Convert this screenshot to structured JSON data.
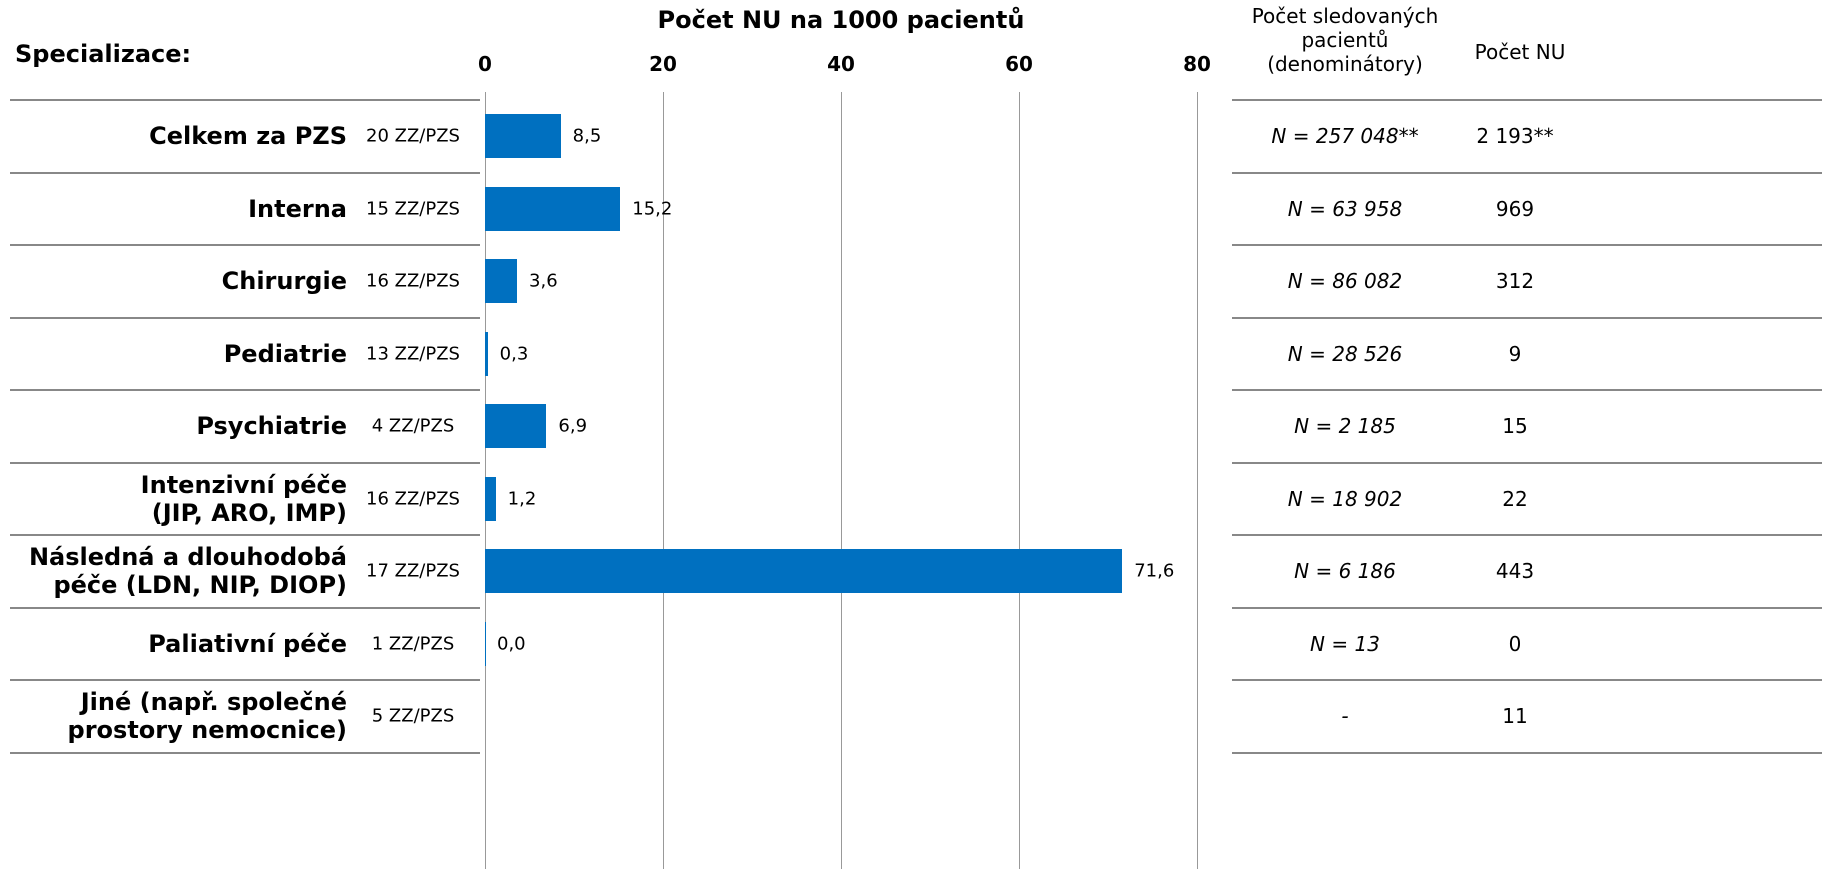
{
  "chart_data": {
    "type": "bar",
    "orientation": "horizontal",
    "title": "Počet NU na 1000 pacientů",
    "category_header": "Specializace:",
    "categories": [
      "Celkem za PZS",
      "Interna",
      "Chirurgie",
      "Pediatrie",
      "Psychiatrie",
      "Intenzivní péče\n(JIP, ARO, IMP)",
      "Následná a dlouhodobá\npéče (LDN, NIP, DIOP)",
      "Paliativní péče",
      "Jiné (např. společné\nprostory nemocnice)"
    ],
    "facilities": [
      "20 ZZ/PZS",
      "15 ZZ/PZS",
      "16 ZZ/PZS",
      "13 ZZ/PZS",
      "4 ZZ/PZS",
      "16 ZZ/PZS",
      "17 ZZ/PZS",
      "1 ZZ/PZS",
      "5 ZZ/PZS"
    ],
    "values": [
      8.5,
      15.2,
      3.6,
      0.3,
      6.9,
      1.2,
      71.6,
      0.0,
      null
    ],
    "value_labels": [
      "8,5",
      "15,2",
      "3,6",
      "0,3",
      "6,9",
      "1,2",
      "71,6",
      "0,0",
      null
    ],
    "color": "#0070c0",
    "xlim": [
      0,
      80
    ],
    "xticks": [
      0,
      20,
      40,
      60,
      80
    ],
    "grid": true,
    "table": {
      "columns": [
        "Počet sledovaných\npacientů\n(denominátory)",
        "Počet NU"
      ],
      "denominators": [
        "N = 257 048**",
        "N = 63 958",
        "N = 86 082",
        "N = 28 526",
        "N = 2 185",
        "N = 18 902",
        "N = 6 186",
        "N = 13",
        "-"
      ],
      "counts": [
        "2 193**",
        "969",
        "312",
        "9",
        "15",
        "22",
        "443",
        "0",
        "11"
      ]
    }
  }
}
